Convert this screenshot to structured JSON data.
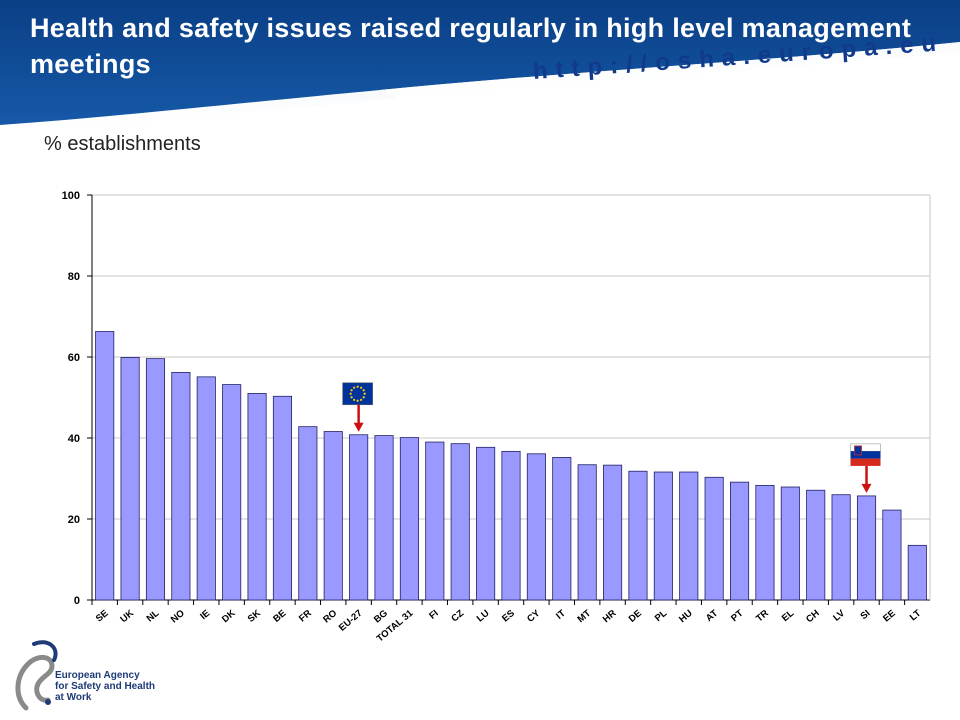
{
  "header": {
    "title": "Health and safety issues raised regularly in high level management meetings",
    "url": "http://osha.europa.eu"
  },
  "colors": {
    "banner": "#0e4a8f",
    "bar": "#9999ff",
    "bar_stroke": "#222266",
    "arrow": "#cc1111"
  },
  "chart_data": {
    "type": "bar",
    "ylabel": "% establishments",
    "ylim": [
      0,
      100
    ],
    "yticks": [
      0,
      20,
      40,
      60,
      80,
      100
    ],
    "grid": true,
    "categories": [
      "SE",
      "UK",
      "NL",
      "NO",
      "IE",
      "DK",
      "SK",
      "BE",
      "FR",
      "RO",
      "EU-27",
      "BG",
      "TOTAL 31",
      "FI",
      "CZ",
      "LU",
      "ES",
      "CY",
      "IT",
      "MT",
      "HR",
      "DE",
      "PL",
      "HU",
      "AT",
      "PT",
      "TR",
      "EL",
      "CH",
      "LV",
      "SI",
      "EE",
      "LT"
    ],
    "values": [
      66.3,
      59.9,
      59.6,
      56.2,
      55.1,
      53.2,
      51.0,
      50.3,
      42.8,
      41.6,
      40.8,
      40.6,
      40.1,
      39.0,
      38.6,
      37.7,
      36.7,
      36.1,
      35.2,
      33.4,
      33.3,
      31.8,
      31.6,
      31.6,
      30.3,
      29.1,
      28.3,
      27.9,
      27.1,
      26.0,
      25.7,
      22.2,
      13.5
    ],
    "markers": [
      {
        "category": "EU-27",
        "icon": "eu-flag-icon"
      },
      {
        "category": "SI",
        "icon": "slovenia-flag-icon"
      }
    ]
  },
  "footer": {
    "logo_icon": "eu-osha-logo-icon",
    "logo_lines": [
      "European Agency",
      "for Safety and Health",
      "at Work"
    ]
  }
}
